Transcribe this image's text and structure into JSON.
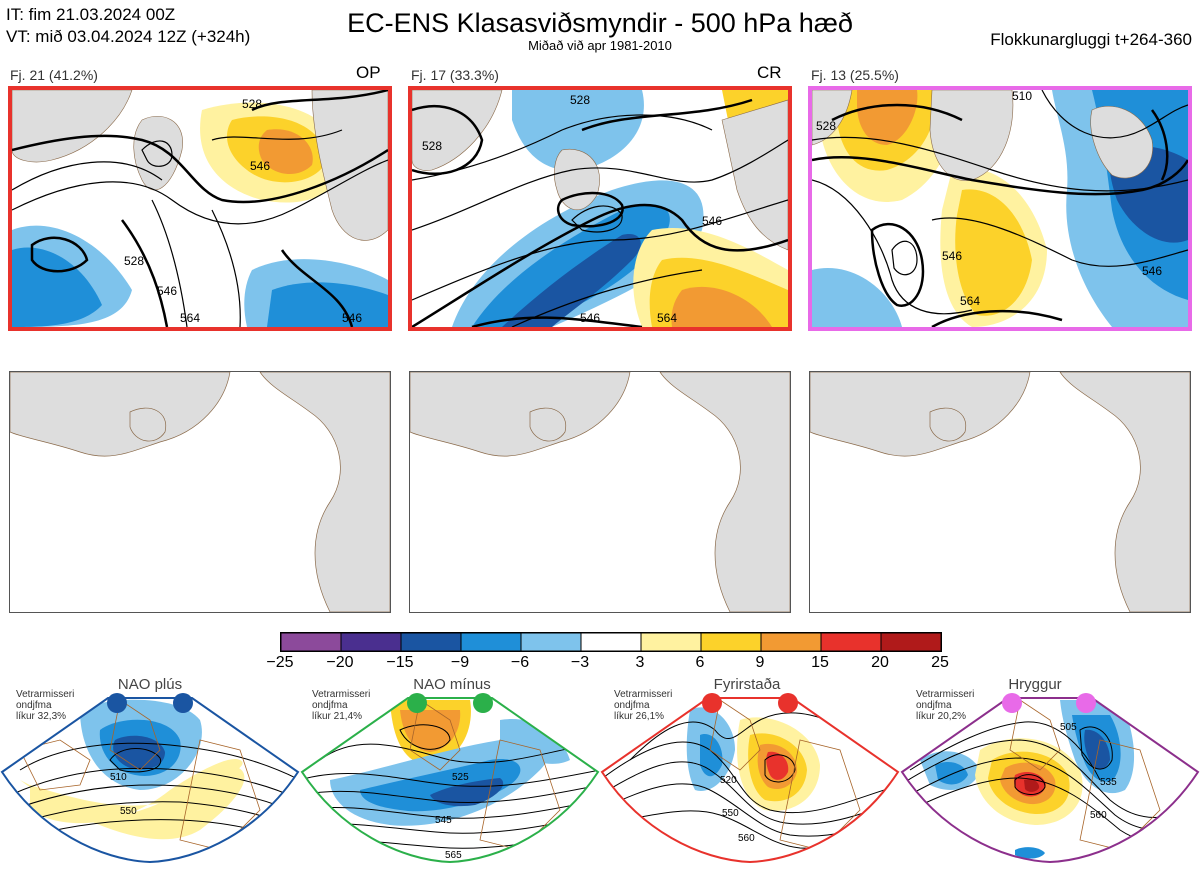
{
  "header": {
    "it_line": "IT: fim 21.03.2024 00Z",
    "vt_line": "VT: mið 03.04.2024 12Z  (+324h)",
    "title": "EC-ENS Klasasviðsmyndir - 500 hPa hæð",
    "subtitle": "Miðað við apr 1981-2010",
    "window": "Flokkunargluggi t+264-360"
  },
  "clusters": [
    {
      "label": "Fj. 21 (41.2%)",
      "tag": "OP",
      "border_color": "#e8322c"
    },
    {
      "label": "Fj. 17 (33.3%)",
      "tag": "CR",
      "border_color": "#e8322c"
    },
    {
      "label": "Fj. 13 (25.5%)",
      "tag": "",
      "border_color": "#e86ae8"
    }
  ],
  "contour_labels": {
    "c1": [
      "528",
      "546",
      "528",
      "546",
      "564",
      "546"
    ],
    "c2": [
      "528",
      "528",
      "546",
      "564",
      "546"
    ],
    "c3": [
      "510",
      "528",
      "546",
      "546",
      "564"
    ]
  },
  "colorbar": {
    "ticks": [
      "−25",
      "−20",
      "−15",
      "−9",
      "−6",
      "−3",
      "3",
      "6",
      "9",
      "15",
      "20",
      "25"
    ],
    "colors": [
      "#8c4a9b",
      "#4a2f8f",
      "#1a55a2",
      "#1f8fd8",
      "#7ec3ec",
      "#ffffff",
      "#fff2a0",
      "#fcd22a",
      "#f29a33",
      "#e8322c",
      "#b01a1a"
    ]
  },
  "regimes": [
    {
      "name": "NAO plús",
      "info": [
        "Vetrarmisseri",
        "ondjfma",
        "líkur 32,3%"
      ],
      "color": "#1a55a2",
      "labels": [
        "510",
        "550"
      ]
    },
    {
      "name": "NAO mínus",
      "info": [
        "Vetrarmisseri",
        "ondjfma",
        "líkur 21,4%"
      ],
      "color": "#2bb04a",
      "labels": [
        "525",
        "545",
        "565"
      ]
    },
    {
      "name": "Fyrirstaða",
      "info": [
        "Vetrarmisseri",
        "ondjfma",
        "líkur 26,1%"
      ],
      "color": "#e8322c",
      "labels": [
        "520",
        "550",
        "560"
      ]
    },
    {
      "name": "Hryggur",
      "info": [
        "Vetrarmisseri",
        "ondjfma",
        "líkur 20,2%"
      ],
      "color": "#e86ae8",
      "labels": [
        "505",
        "535",
        "560"
      ]
    }
  ]
}
